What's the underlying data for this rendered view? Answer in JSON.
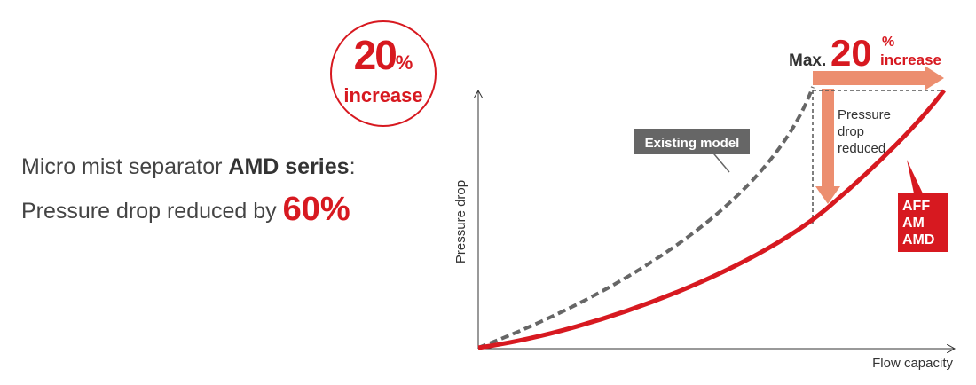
{
  "badge": {
    "value": "20",
    "unit": "%",
    "label": "increase"
  },
  "headline": {
    "line1_prefix": "Micro mist separator ",
    "line1_bold": "AMD series",
    "line1_suffix": ":",
    "line2_prefix": "Pressure drop reduced by ",
    "line2_value": "60%"
  },
  "chart_data": {
    "type": "line",
    "xlabel": "Flow capacity",
    "ylabel": "Pressure drop",
    "series": [
      {
        "name": "Existing model",
        "style": "dashed",
        "color": "#666666"
      },
      {
        "name": "AFF\nAM\nAMD",
        "style": "solid",
        "color": "#d71920"
      }
    ],
    "annotations": {
      "max_prefix": "Max.",
      "max_value": "20",
      "max_unit": "%",
      "max_word": "increase",
      "reduction_text": [
        "Pressure",
        "drop",
        "reduced"
      ],
      "existing_label": "Existing model",
      "new_label_lines": [
        "AFF",
        "AM",
        "AMD"
      ]
    }
  },
  "colors": {
    "accent": "#d71920",
    "arrow": "#ec8e6f",
    "existing": "#666666"
  }
}
